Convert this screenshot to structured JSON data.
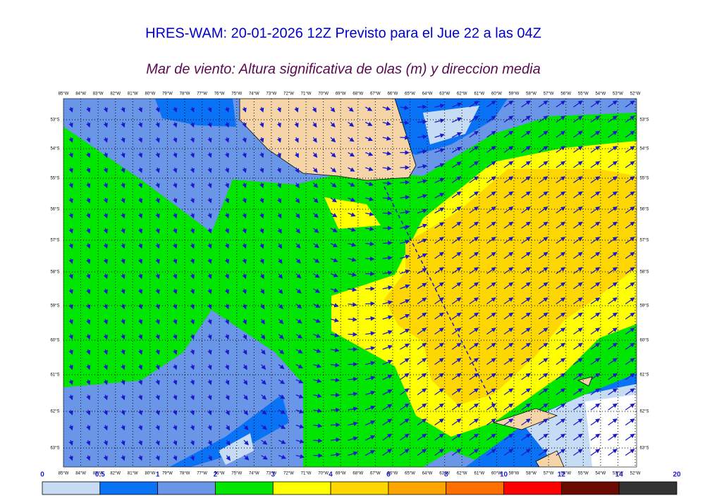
{
  "header": {
    "title": "HRES-WAM: 20-01-2026 12Z Previsto para el Jue 22 a las 04Z",
    "subtitle": "Mar de viento: Altura significativa de olas (m) y direccion media"
  },
  "map": {
    "lon_labels": [
      "85°W",
      "84°W",
      "83°W",
      "82°W",
      "81°W",
      "80°W",
      "79°W",
      "78°W",
      "77°W",
      "76°W",
      "75°W",
      "74°W",
      "73°W",
      "72°W",
      "71°W",
      "70°W",
      "69°W",
      "68°W",
      "67°W",
      "66°W",
      "65°W",
      "64°W",
      "63°W",
      "62°W",
      "61°W",
      "60°W",
      "59°W",
      "58°W",
      "57°W",
      "56°W",
      "55°W",
      "54°W",
      "53°W",
      "52°W"
    ],
    "lat_labels": [
      "53°S",
      "54°S",
      "55°S",
      "56°S",
      "57°S",
      "58°S",
      "59°S",
      "60°S",
      "61°S",
      "62°S",
      "63°S"
    ]
  },
  "colorbar": {
    "bounds": [
      0,
      0.5,
      1,
      2,
      3,
      4,
      6,
      8,
      10,
      12,
      14,
      20
    ],
    "colors": [
      "#c6dcf5",
      "#0a73f5",
      "#6a96e8",
      "#00e600",
      "#ffff00",
      "#ffd700",
      "#ffa500",
      "#ff7000",
      "#ff0000",
      "#6b0a00",
      "#333333"
    ]
  }
}
